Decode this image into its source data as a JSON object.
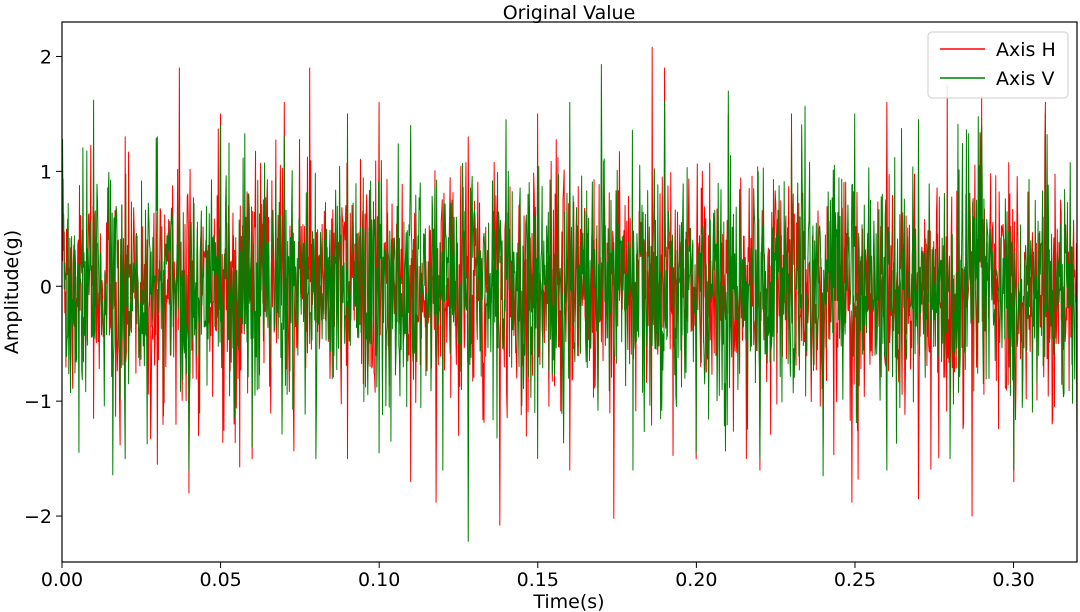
{
  "chart_data": {
    "type": "line",
    "title": "Original Value",
    "xlabel": "Time(s)",
    "ylabel": "Amplitude(g)",
    "xlim": [
      0.0,
      0.32
    ],
    "ylim": [
      -2.4,
      2.3
    ],
    "xticks": [
      0.0,
      0.05,
      0.1,
      0.15,
      0.2,
      0.25,
      0.3
    ],
    "xtick_labels": [
      "0.00",
      "0.05",
      "0.10",
      "0.15",
      "0.20",
      "0.25",
      "0.30"
    ],
    "yticks": [
      2,
      1,
      0,
      -1,
      -2
    ],
    "ytick_labels": [
      "2",
      "1",
      "0",
      "−1",
      "−2"
    ],
    "grid": false,
    "legend_position": "top-right",
    "series": [
      {
        "name": "Axis H",
        "color": "#ff0000",
        "x": [
          0.0,
          0.01,
          0.02,
          0.03,
          0.037,
          0.04,
          0.05,
          0.06,
          0.07,
          0.078,
          0.09,
          0.1,
          0.11,
          0.118,
          0.128,
          0.138,
          0.15,
          0.16,
          0.174,
          0.186,
          0.19,
          0.2,
          0.21,
          0.22,
          0.23,
          0.24,
          0.249,
          0.26,
          0.27,
          0.279,
          0.287,
          0.29,
          0.3,
          0.31,
          0.32
        ],
        "values": [
          1.25,
          -1.15,
          1.3,
          -1.55,
          1.9,
          -1.8,
          1.5,
          -1.5,
          1.6,
          1.9,
          -1.5,
          1.6,
          -1.7,
          -1.88,
          1.3,
          -2.08,
          1.5,
          -1.6,
          -2.02,
          2.08,
          1.9,
          -1.5,
          1.5,
          -1.6,
          1.5,
          -1.4,
          -1.88,
          1.6,
          -1.85,
          1.75,
          -2.0,
          1.65,
          -1.7,
          1.6,
          -1.45
        ]
      },
      {
        "name": "Axis V",
        "color": "#008000",
        "x": [
          0.0,
          0.01,
          0.02,
          0.03,
          0.04,
          0.05,
          0.06,
          0.07,
          0.08,
          0.09,
          0.1,
          0.11,
          0.12,
          0.128,
          0.14,
          0.15,
          0.16,
          0.17,
          0.18,
          0.19,
          0.2,
          0.21,
          0.22,
          0.23,
          0.24,
          0.25,
          0.26,
          0.27,
          0.28,
          0.29,
          0.3,
          0.31,
          0.32
        ],
        "values": [
          0.9,
          1.62,
          -1.5,
          1.3,
          -1.6,
          1.4,
          -1.4,
          1.3,
          -1.5,
          1.5,
          -1.45,
          1.4,
          -1.6,
          -2.22,
          1.45,
          -1.5,
          1.6,
          1.93,
          -1.6,
          1.6,
          -1.45,
          1.7,
          -1.5,
          1.35,
          -1.65,
          1.5,
          -1.6,
          1.45,
          -1.5,
          1.4,
          -1.6,
          1.5,
          -1.4
        ]
      }
    ]
  }
}
